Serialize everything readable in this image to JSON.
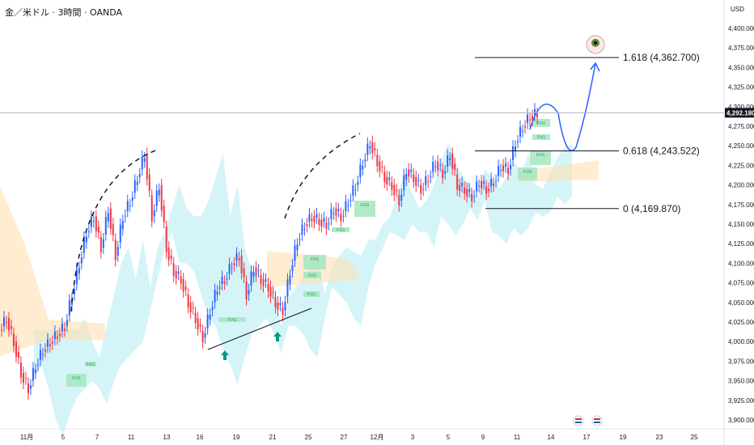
{
  "header": {
    "title": "金／米ドル · 3時間 · OANDA",
    "currency": "USD"
  },
  "chart_data": {
    "type": "candlestick",
    "y_ticks": [
      3900,
      3925,
      3950,
      3975,
      4000,
      4025,
      4050,
      4075,
      4100,
      4125,
      4150,
      4175,
      4200,
      4225,
      4250,
      4275,
      4300,
      4325,
      4350,
      4375,
      4400
    ],
    "ylim": [
      3893,
      4415
    ],
    "x_ticks": [
      {
        "label": "11月",
        "day": 1
      },
      {
        "label": "5",
        "day": 5
      },
      {
        "label": "7",
        "day": 7
      },
      {
        "label": "11",
        "day": 11
      },
      {
        "label": "13",
        "day": 13
      },
      {
        "label": "16",
        "day": 16
      },
      {
        "label": "19",
        "day": 19
      },
      {
        "label": "21",
        "day": 21
      },
      {
        "label": "25",
        "day": 25
      },
      {
        "label": "27",
        "day": 27
      },
      {
        "label": "12月",
        "day": 29
      },
      {
        "label": "3",
        "day": 31
      },
      {
        "label": "5",
        "day": 33
      },
      {
        "label": "9",
        "day": 35
      },
      {
        "label": "11",
        "day": 37
      },
      {
        "label": "14",
        "day": 39
      },
      {
        "label": "17",
        "day": 41
      },
      {
        "label": "19",
        "day": 43
      },
      {
        "label": "23",
        "day": 45
      },
      {
        "label": "25",
        "day": 47
      }
    ],
    "current_price": {
      "value": 4292.18,
      "label": "4,292.180"
    },
    "price_path": [
      [
        0,
        4015
      ],
      [
        1,
        4030
      ],
      [
        2,
        4000
      ],
      [
        3,
        3960
      ],
      [
        4,
        3940
      ],
      [
        5,
        3970
      ],
      [
        6,
        3990
      ],
      [
        7,
        4000
      ],
      [
        8,
        4010
      ],
      [
        9,
        4020
      ],
      [
        10,
        4060
      ],
      [
        11,
        4100
      ],
      [
        12,
        4140
      ],
      [
        13,
        4160
      ],
      [
        14,
        4120
      ],
      [
        15,
        4170
      ],
      [
        16,
        4110
      ],
      [
        17,
        4160
      ],
      [
        18,
        4180
      ],
      [
        19,
        4210
      ],
      [
        20,
        4240
      ],
      [
        21,
        4160
      ],
      [
        22,
        4200
      ],
      [
        23,
        4120
      ],
      [
        24,
        4090
      ],
      [
        25,
        4080
      ],
      [
        26,
        4050
      ],
      [
        27,
        4030
      ],
      [
        28,
        4005
      ],
      [
        29,
        4040
      ],
      [
        30,
        4070
      ],
      [
        31,
        4080
      ],
      [
        32,
        4100
      ],
      [
        33,
        4110
      ],
      [
        34,
        4060
      ],
      [
        35,
        4095
      ],
      [
        36,
        4080
      ],
      [
        37,
        4070
      ],
      [
        38,
        4050
      ],
      [
        39,
        4040
      ],
      [
        40,
        4090
      ],
      [
        41,
        4130
      ],
      [
        42,
        4150
      ],
      [
        43,
        4160
      ],
      [
        44,
        4155
      ],
      [
        45,
        4150
      ],
      [
        46,
        4170
      ],
      [
        47,
        4160
      ],
      [
        48,
        4180
      ],
      [
        49,
        4200
      ],
      [
        50,
        4230
      ],
      [
        51,
        4255
      ],
      [
        52,
        4230
      ],
      [
        53,
        4210
      ],
      [
        54,
        4200
      ],
      [
        55,
        4180
      ],
      [
        56,
        4220
      ],
      [
        57,
        4210
      ],
      [
        58,
        4195
      ],
      [
        59,
        4210
      ],
      [
        60,
        4230
      ],
      [
        61,
        4215
      ],
      [
        62,
        4240
      ],
      [
        63,
        4200
      ],
      [
        64,
        4195
      ],
      [
        65,
        4185
      ],
      [
        66,
        4205
      ],
      [
        67,
        4195
      ],
      [
        68,
        4205
      ],
      [
        69,
        4225
      ],
      [
        70,
        4220
      ],
      [
        71,
        4255
      ],
      [
        72,
        4275
      ],
      [
        73,
        4288
      ],
      [
        74,
        4292
      ]
    ],
    "fibonacci": [
      {
        "ratio": "1.618",
        "price": 4362.7,
        "label": "1.618 (4,362.700)"
      },
      {
        "ratio": "0.618",
        "price": 4243.522,
        "label": "0.618 (4,243.522)"
      },
      {
        "ratio": "0",
        "price": 4169.87,
        "label": "0 (4,169.870)"
      }
    ],
    "fvg_labels": [
      "FVG",
      "FVG",
      "FVG",
      "FVG",
      "FVG",
      "FVG",
      "FVG",
      "FVG",
      "FVG",
      "FVG",
      "FVG",
      "FVG"
    ],
    "colors": {
      "bull": "#2962ff",
      "bear": "#f23645",
      "cloud_green": "#b2ebf2",
      "cloud_red": "#ffe0b2",
      "fvg_fill": "#a5e6c0",
      "fvg_text": "#1aa152",
      "arrow": "#089981",
      "projection": "#2962ff"
    },
    "annotations": [
      "eye-emoji",
      "event-flag-us",
      "event-flag-us"
    ]
  }
}
